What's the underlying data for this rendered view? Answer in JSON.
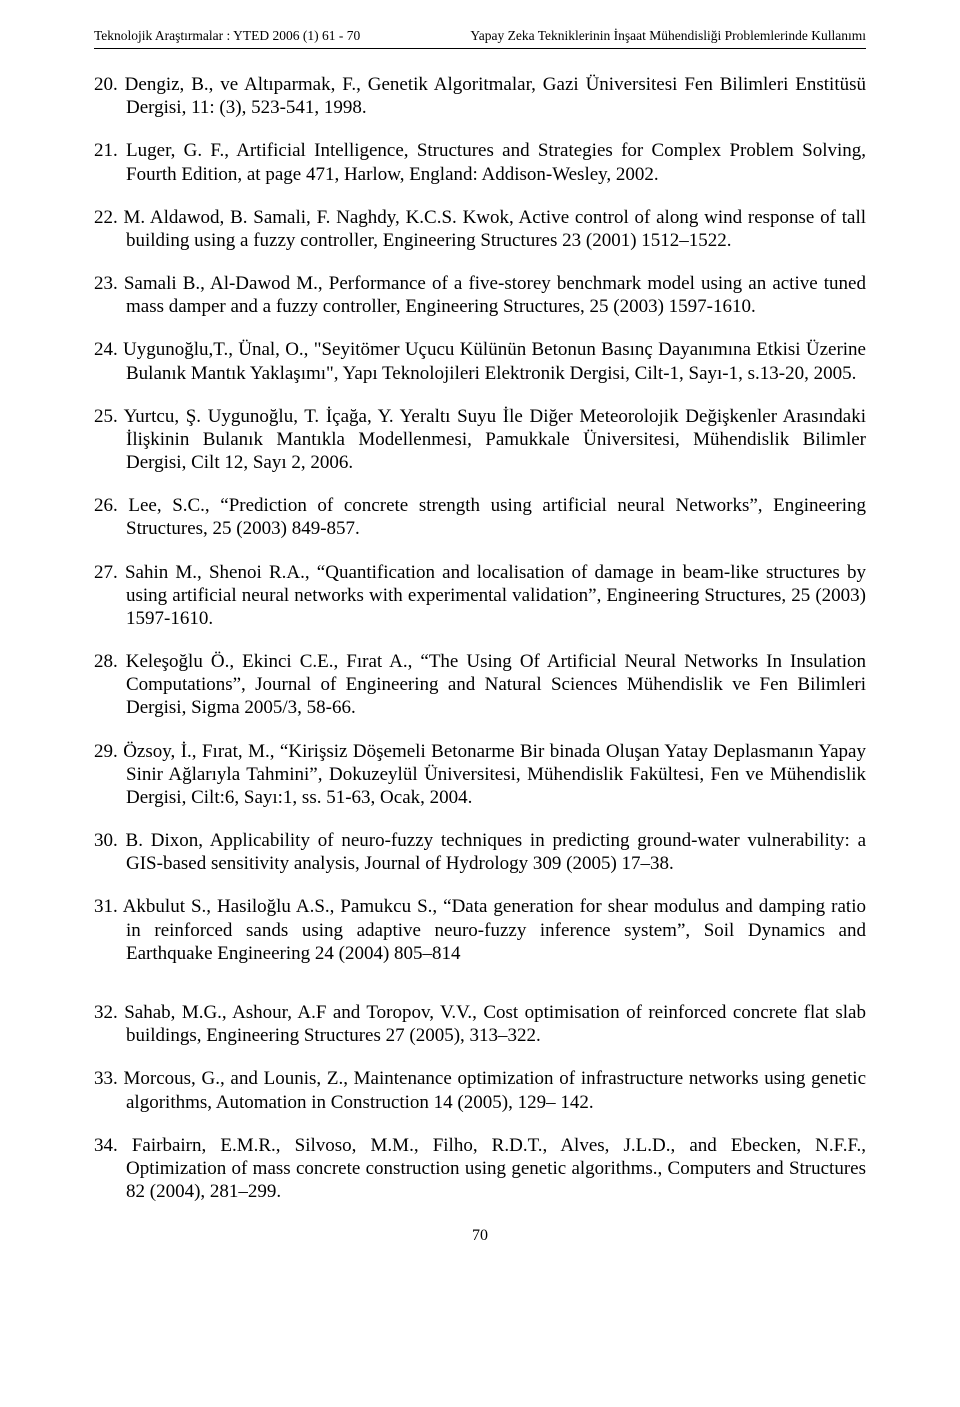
{
  "header": {
    "left": "Teknolojik Araştırmalar : YTED  2006 (1) 61 - 70",
    "right": "Yapay Zeka Tekniklerinin İnşaat Mühendisliği Problemlerinde Kullanımı"
  },
  "references": [
    {
      "n": "20.",
      "t": "Dengiz, B., ve Altıparmak, F., Genetik Algoritmalar,  Gazi Üniversitesi Fen Bilimleri Enstitüsü Dergisi, 11: (3), 523-541, 1998."
    },
    {
      "n": "21.",
      "t": "Luger, G. F., Artificial Intelligence, Structures and Strategies for Complex  Problem Solving, Fourth Edition, at page 471, Harlow, England: Addison-Wesley, 2002."
    },
    {
      "n": "22.",
      "t": "M. Aldawod, B. Samali, F. Naghdy, K.C.S. Kwok, Active control of along wind response of tall building using a fuzzy controller, Engineering Structures 23 (2001) 1512–1522."
    },
    {
      "n": "23.",
      "t": "Samali B., Al-Dawod M., Performance of a five-storey benchmark model using an active tuned mass damper and a fuzzy controller, Engineering Structures, 25 (2003) 1597-1610."
    },
    {
      "n": "24.",
      "t": "Uygunoğlu,T., Ünal, O., \"Seyitömer Uçucu Külünün Betonun Basınç Dayanımına Etkisi Üzerine Bulanık Mantık Yaklaşımı\", Yapı Teknolojileri Elektronik Dergisi, Cilt-1, Sayı-1, s.13-20, 2005."
    },
    {
      "n": "25.",
      "t": "Yurtcu, Ş. Uygunoğlu, T. İçağa, Y. Yeraltı Suyu İle Diğer Meteorolojik Değişkenler Arasındaki İlişkinin Bulanık Mantıkla Modellenmesi, Pamukkale Üniversitesi, Mühendislik Bilimler Dergisi, Cilt 12, Sayı 2, 2006."
    },
    {
      "n": "26.",
      "t": "Lee, S.C., “Prediction of concrete strength using artificial neural Networks”, Engineering Structures, 25 (2003) 849-857."
    },
    {
      "n": "27.",
      "t": "Sahin M., Shenoi R.A., “Quantification and localisation of damage in beam-like structures by using artificial neural networks with experimental validation”, Engineering Structures, 25 (2003) 1597-1610."
    },
    {
      "n": "28.",
      "t": "Keleşoğlu Ö., Ekinci C.E., Fırat A., “The Using Of Artificial Neural Networks In Insulation Computations”, Journal of Engineering and Natural Sciences Mühendislik ve Fen Bilimleri Dergisi, Sigma 2005/3, 58-66."
    },
    {
      "n": "29.",
      "t": "Özsoy, İ., Fırat, M., “Kirişsiz Döşemeli Betonarme Bir binada Oluşan Yatay Deplasmanın Yapay Sinir Ağlarıyla Tahmini”, Dokuzeylül Üniversitesi, Mühendislik Fakültesi, Fen ve Mühendislik Dergisi, Cilt:6, Sayı:1, ss. 51-63, Ocak, 2004."
    },
    {
      "n": "30.",
      "t": "B. Dixon, Applicability of neuro-fuzzy techniques in predicting ground-water vulnerability: a GIS-based sensitivity analysis, Journal of Hydrology 309 (2005) 17–38."
    },
    {
      "n": "31.",
      "t": "Akbulut S., Hasiloğlu A.S., Pamukcu S., “Data generation for shear modulus and damping ratio in reinforced sands using adaptive neuro-fuzzy inference system”, Soil Dynamics and Earthquake Engineering 24 (2004) 805–814",
      "wide": true
    },
    {
      "n": "32.",
      "t": "Sahab, M.G., Ashour, A.F and Toropov, V.V., Cost optimisation of reinforced concrete flat slab buildings, Engineering Structures 27 (2005), 313–322."
    },
    {
      "n": "33.",
      "t": "Morcous, G., and Lounis, Z., Maintenance optimization of infrastructure networks   using genetic algorithms, Automation in Construction 14 (2005), 129– 142."
    },
    {
      "n": "34.",
      "t": "Fairbairn, E.M.R., Silvoso, M.M., Filho, R.D.T., Alves, J.L.D., and Ebecken, N.F.F., Optimization of mass concrete construction using genetic algorithms., Computers and Structures 82 (2004), 281–299."
    }
  ],
  "pagenum": "70"
}
